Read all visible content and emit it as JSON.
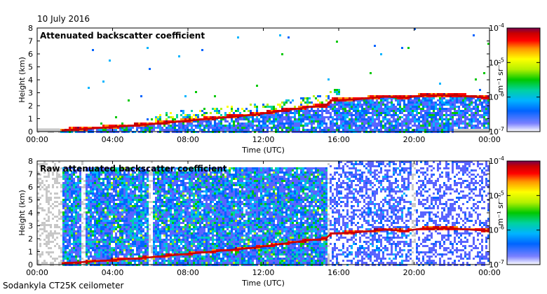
{
  "page": {
    "date": "10 July 2016",
    "footer": "Sodankyla CT25K ceilometer"
  },
  "colors": {
    "colormap": [
      "#ffffff",
      "#5a64ff",
      "#0064ff",
      "#00b4ff",
      "#00d2a0",
      "#00c800",
      "#b4f000",
      "#ffff00",
      "#ff9600",
      "#ff0000",
      "#c80000",
      "#78004e"
    ],
    "noise": "#c8c8c8",
    "layer": "#c80000"
  },
  "chart_data": [
    {
      "type": "heatmap",
      "title": "Attenuated backscatter coefficient",
      "xlabel": "Time (UTC)",
      "ylabel": "Height (km)",
      "x_ticks": [
        "00:00",
        "04:00",
        "08:00",
        "12:00",
        "16:00",
        "20:00",
        "00:00"
      ],
      "xlim_hours": [
        0,
        24
      ],
      "y_ticks": [
        0,
        1,
        2,
        3,
        4,
        5,
        6,
        7,
        8
      ],
      "ylim": [
        0,
        8
      ],
      "grid": false,
      "colorbar": {
        "label": "m⁻¹ sr⁻¹",
        "scale": "log",
        "range": [
          1e-07,
          0.0001
        ],
        "ticks": [
          {
            "mantissa": "10",
            "exponent": "-4"
          },
          {
            "mantissa": "10",
            "exponent": "-5"
          },
          {
            "mantissa": "10",
            "exponent": "-6"
          },
          {
            "mantissa": "10",
            "exponent": "-7"
          }
        ]
      },
      "layer_top_km": [
        {
          "time_h": 1.3,
          "height_km": 0.1
        },
        {
          "time_h": 2.5,
          "height_km": 0.2
        },
        {
          "time_h": 4.0,
          "height_km": 0.35
        },
        {
          "time_h": 5.5,
          "height_km": 0.5
        },
        {
          "time_h": 7.0,
          "height_km": 0.7
        },
        {
          "time_h": 8.5,
          "height_km": 0.9
        },
        {
          "time_h": 10.0,
          "height_km": 1.1
        },
        {
          "time_h": 11.5,
          "height_km": 1.3
        },
        {
          "time_h": 13.0,
          "height_km": 1.6
        },
        {
          "time_h": 14.5,
          "height_km": 1.9
        },
        {
          "time_h": 15.3,
          "height_km": 2.0
        },
        {
          "time_h": 15.6,
          "height_km": 2.4
        },
        {
          "time_h": 17.0,
          "height_km": 2.5
        },
        {
          "time_h": 18.5,
          "height_km": 2.7
        },
        {
          "time_h": 19.5,
          "height_km": 2.6
        },
        {
          "time_h": 20.5,
          "height_km": 2.8
        },
        {
          "time_h": 22.0,
          "height_km": 2.8
        },
        {
          "time_h": 24.0,
          "height_km": 2.6
        }
      ],
      "noise_band": true
    },
    {
      "type": "heatmap",
      "title": "Raw attenuated backscatter coefficient",
      "xlabel": "Time (UTC)",
      "ylabel": "Height (km)",
      "x_ticks": [
        "00:00",
        "04:00",
        "08:00",
        "12:00",
        "16:00",
        "20:00",
        "00:00"
      ],
      "xlim_hours": [
        0,
        24
      ],
      "y_ticks": [
        0,
        1,
        2,
        3,
        4,
        5,
        6,
        7,
        8
      ],
      "ylim": [
        0,
        8
      ],
      "grid": false,
      "colorbar": {
        "label": "m⁻¹ sr⁻¹",
        "scale": "log",
        "range": [
          1e-07,
          0.0001
        ],
        "ticks": [
          {
            "mantissa": "10",
            "exponent": "-4"
          },
          {
            "mantissa": "10",
            "exponent": "-5"
          },
          {
            "mantissa": "10",
            "exponent": "-6"
          },
          {
            "mantissa": "10",
            "exponent": "-7"
          }
        ]
      },
      "layer_top_km": [
        {
          "time_h": 1.3,
          "height_km": 0.1
        },
        {
          "time_h": 2.5,
          "height_km": 0.2
        },
        {
          "time_h": 4.0,
          "height_km": 0.35
        },
        {
          "time_h": 5.5,
          "height_km": 0.5
        },
        {
          "time_h": 7.0,
          "height_km": 0.7
        },
        {
          "time_h": 8.5,
          "height_km": 0.9
        },
        {
          "time_h": 10.0,
          "height_km": 1.1
        },
        {
          "time_h": 11.5,
          "height_km": 1.3
        },
        {
          "time_h": 13.0,
          "height_km": 1.6
        },
        {
          "time_h": 14.5,
          "height_km": 1.9
        },
        {
          "time_h": 15.3,
          "height_km": 2.0
        },
        {
          "time_h": 15.6,
          "height_km": 2.4
        },
        {
          "time_h": 17.0,
          "height_km": 2.5
        },
        {
          "time_h": 18.5,
          "height_km": 2.7
        },
        {
          "time_h": 19.5,
          "height_km": 2.6
        },
        {
          "time_h": 20.5,
          "height_km": 2.8
        },
        {
          "time_h": 22.0,
          "height_km": 2.8
        },
        {
          "time_h": 24.0,
          "height_km": 2.6
        }
      ],
      "noise_band": false
    }
  ]
}
